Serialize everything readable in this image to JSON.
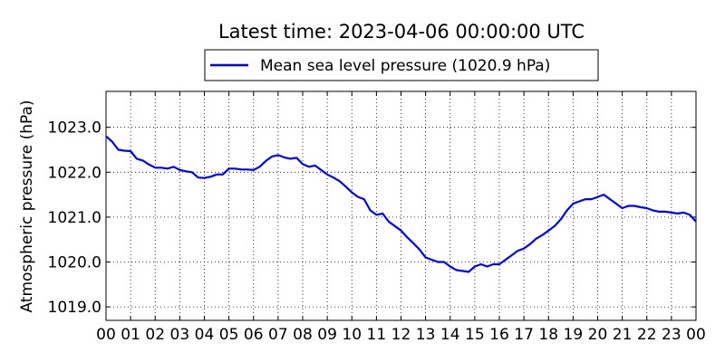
{
  "chart_data": {
    "type": "line",
    "title": "Latest time: 2023-04-06 00:00:00 UTC",
    "xlabel": "",
    "ylabel": "Atmospheric pressure (hPa)",
    "x_ticks": [
      "00",
      "01",
      "02",
      "03",
      "04",
      "05",
      "06",
      "07",
      "08",
      "09",
      "10",
      "11",
      "12",
      "13",
      "14",
      "15",
      "16",
      "17",
      "18",
      "19",
      "20",
      "21",
      "22",
      "23",
      "00"
    ],
    "y_ticks": [
      "1019.0",
      "1020.0",
      "1021.0",
      "1022.0",
      "1023.0"
    ],
    "xlim": [
      0,
      24
    ],
    "ylim": [
      1018.7,
      1023.8
    ],
    "grid": true,
    "legend_position": "top-center",
    "series": [
      {
        "name": "Mean sea level pressure (1020.9 hPa)",
        "color": "#0000ff",
        "x": [
          0,
          0.25,
          0.5,
          0.75,
          1.0,
          1.25,
          1.5,
          1.75,
          2.0,
          2.25,
          2.5,
          2.75,
          3.0,
          3.25,
          3.5,
          3.75,
          4.0,
          4.25,
          4.5,
          4.75,
          5.0,
          5.25,
          5.5,
          5.75,
          6.0,
          6.25,
          6.5,
          6.75,
          7.0,
          7.25,
          7.5,
          7.75,
          8.0,
          8.25,
          8.5,
          8.75,
          9.0,
          9.25,
          9.5,
          9.75,
          10.0,
          10.25,
          10.5,
          10.75,
          11.0,
          11.25,
          11.5,
          11.75,
          12.0,
          12.25,
          12.5,
          12.75,
          13.0,
          13.25,
          13.5,
          13.75,
          14.0,
          14.25,
          14.5,
          14.75,
          15.0,
          15.25,
          15.5,
          15.75,
          16.0,
          16.25,
          16.5,
          16.75,
          17.0,
          17.25,
          17.5,
          17.75,
          18.0,
          18.25,
          18.5,
          18.75,
          19.0,
          19.25,
          19.5,
          19.75,
          20.0,
          20.25,
          20.5,
          20.75,
          21.0,
          21.25,
          21.5,
          21.75,
          22.0,
          22.25,
          22.5,
          22.75,
          23.0,
          23.25,
          23.5,
          23.75,
          24.0
        ],
        "y": [
          1022.8,
          1022.68,
          1022.5,
          1022.48,
          1022.47,
          1022.3,
          1022.26,
          1022.17,
          1022.1,
          1022.1,
          1022.08,
          1022.12,
          1022.05,
          1022.02,
          1022.0,
          1021.88,
          1021.87,
          1021.9,
          1021.95,
          1021.95,
          1022.08,
          1022.08,
          1022.06,
          1022.06,
          1022.05,
          1022.12,
          1022.25,
          1022.35,
          1022.38,
          1022.33,
          1022.3,
          1022.32,
          1022.18,
          1022.12,
          1022.15,
          1022.05,
          1021.95,
          1021.88,
          1021.8,
          1021.68,
          1021.55,
          1021.45,
          1021.4,
          1021.15,
          1021.05,
          1021.08,
          1020.9,
          1020.8,
          1020.7,
          1020.55,
          1020.42,
          1020.28,
          1020.1,
          1020.05,
          1020.0,
          1020.0,
          1019.9,
          1019.82,
          1019.8,
          1019.78,
          1019.9,
          1019.95,
          1019.9,
          1019.95,
          1019.95,
          1020.05,
          1020.15,
          1020.25,
          1020.3,
          1020.4,
          1020.52,
          1020.6,
          1020.7,
          1020.8,
          1020.95,
          1021.15,
          1021.3,
          1021.35,
          1021.4,
          1021.4,
          1021.45,
          1021.5,
          1021.4,
          1021.3,
          1021.2,
          1021.25,
          1021.25,
          1021.22,
          1021.2,
          1021.15,
          1021.12,
          1021.12,
          1021.1,
          1021.08,
          1021.1,
          1021.05,
          1020.9
        ]
      }
    ]
  }
}
